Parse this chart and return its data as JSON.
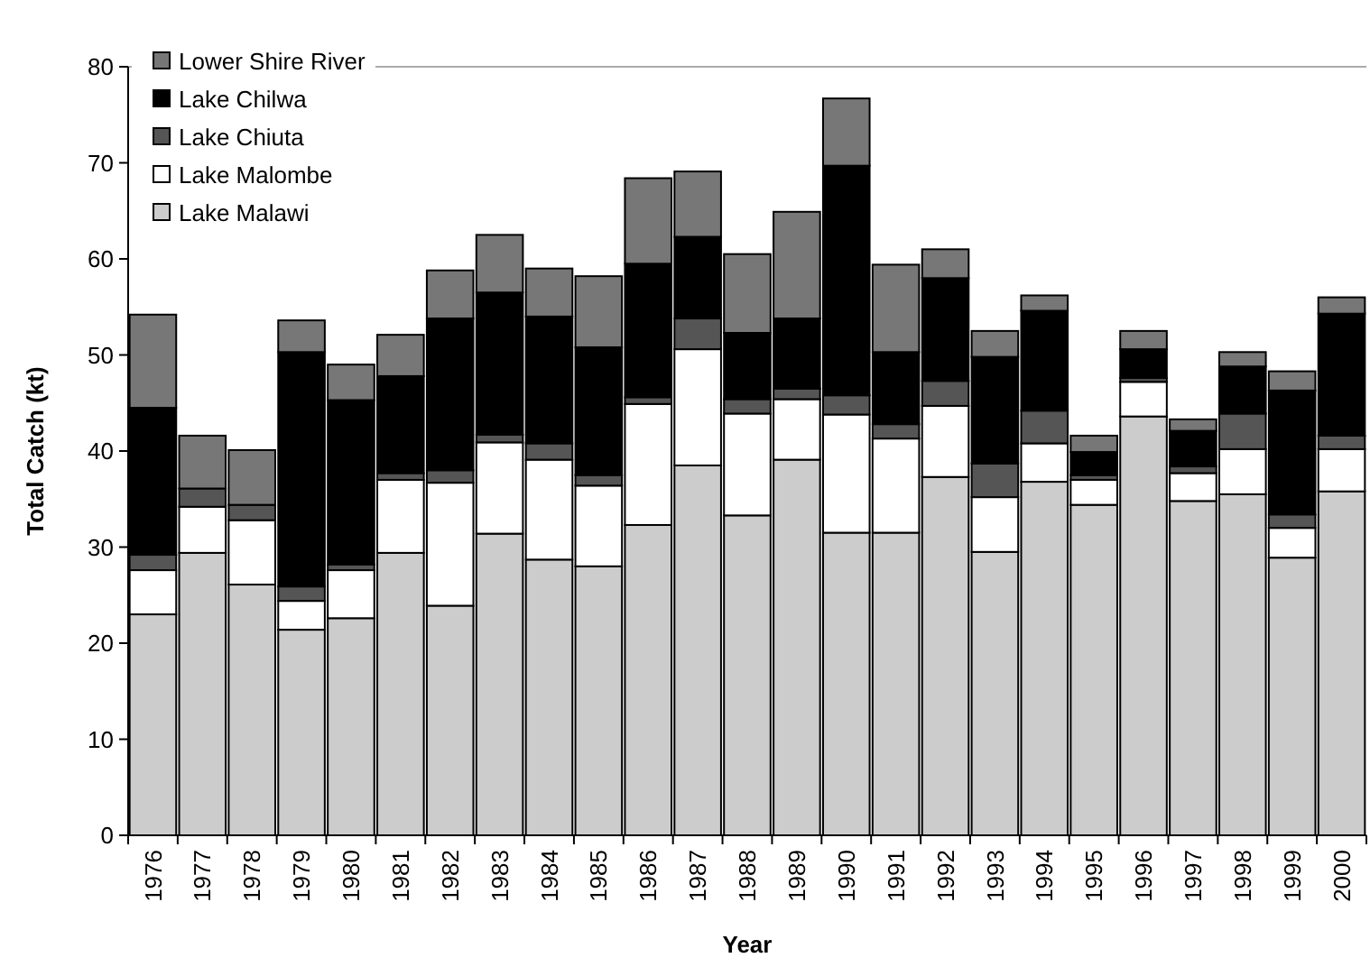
{
  "chart_data": {
    "type": "bar",
    "stacked": true,
    "xlabel": "Year",
    "ylabel": "Total Catch (kt)",
    "categories": [
      "1976",
      "1977",
      "1978",
      "1979",
      "1980",
      "1981",
      "1982",
      "1983",
      "1984",
      "1985",
      "1986",
      "1987",
      "1988",
      "1989",
      "1990",
      "1991",
      "1992",
      "1993",
      "1994",
      "1995",
      "1996",
      "1997",
      "1998",
      "1999",
      "2000"
    ],
    "series": [
      {
        "name": "Lake Malawi",
        "color": "#cccccc",
        "values": [
          23.0,
          29.4,
          26.1,
          21.4,
          22.6,
          29.4,
          23.9,
          31.4,
          28.7,
          28.0,
          32.3,
          38.5,
          33.3,
          39.1,
          31.5,
          31.5,
          37.3,
          29.5,
          36.8,
          34.4,
          43.6,
          34.8,
          35.5,
          28.9,
          35.8
        ]
      },
      {
        "name": "Lake Malombe",
        "color": "#ffffff",
        "values": [
          4.6,
          4.8,
          6.7,
          3.0,
          5.0,
          7.6,
          12.8,
          9.5,
          10.4,
          8.4,
          12.6,
          12.1,
          10.6,
          6.3,
          12.3,
          9.8,
          7.4,
          5.7,
          4.0,
          2.6,
          3.6,
          2.9,
          4.7,
          3.1,
          4.4
        ]
      },
      {
        "name": "Lake Chiuta",
        "color": "#555555",
        "values": [
          1.6,
          1.9,
          1.6,
          1.5,
          0.6,
          0.7,
          1.3,
          0.8,
          1.7,
          1.1,
          0.7,
          3.2,
          1.5,
          1.1,
          2.0,
          1.5,
          2.6,
          3.5,
          3.4,
          0.5,
          0.4,
          0.7,
          3.7,
          1.4,
          1.4
        ]
      },
      {
        "name": "Lake Chilwa",
        "color": "#000000",
        "values": [
          15.3,
          0,
          0,
          24.4,
          17.1,
          10.1,
          15.8,
          14.8,
          13.2,
          13.3,
          13.9,
          8.5,
          6.9,
          7.3,
          23.9,
          7.5,
          10.7,
          11.1,
          10.4,
          2.4,
          3.0,
          3.7,
          4.9,
          12.9,
          12.7
        ]
      },
      {
        "name": "Lower Shire River",
        "color": "#777777",
        "values": [
          9.7,
          5.5,
          5.7,
          3.3,
          3.7,
          4.3,
          5.0,
          6.0,
          5.0,
          7.4,
          8.9,
          6.8,
          8.2,
          11.1,
          7.0,
          9.1,
          3.0,
          2.7,
          1.6,
          1.7,
          1.9,
          1.2,
          1.5,
          2.0,
          1.7
        ]
      }
    ],
    "ylim": [
      0,
      80
    ],
    "yticks": [
      0,
      10,
      20,
      30,
      40,
      50,
      60,
      70,
      80
    ],
    "grid": false,
    "legend": "top left"
  }
}
